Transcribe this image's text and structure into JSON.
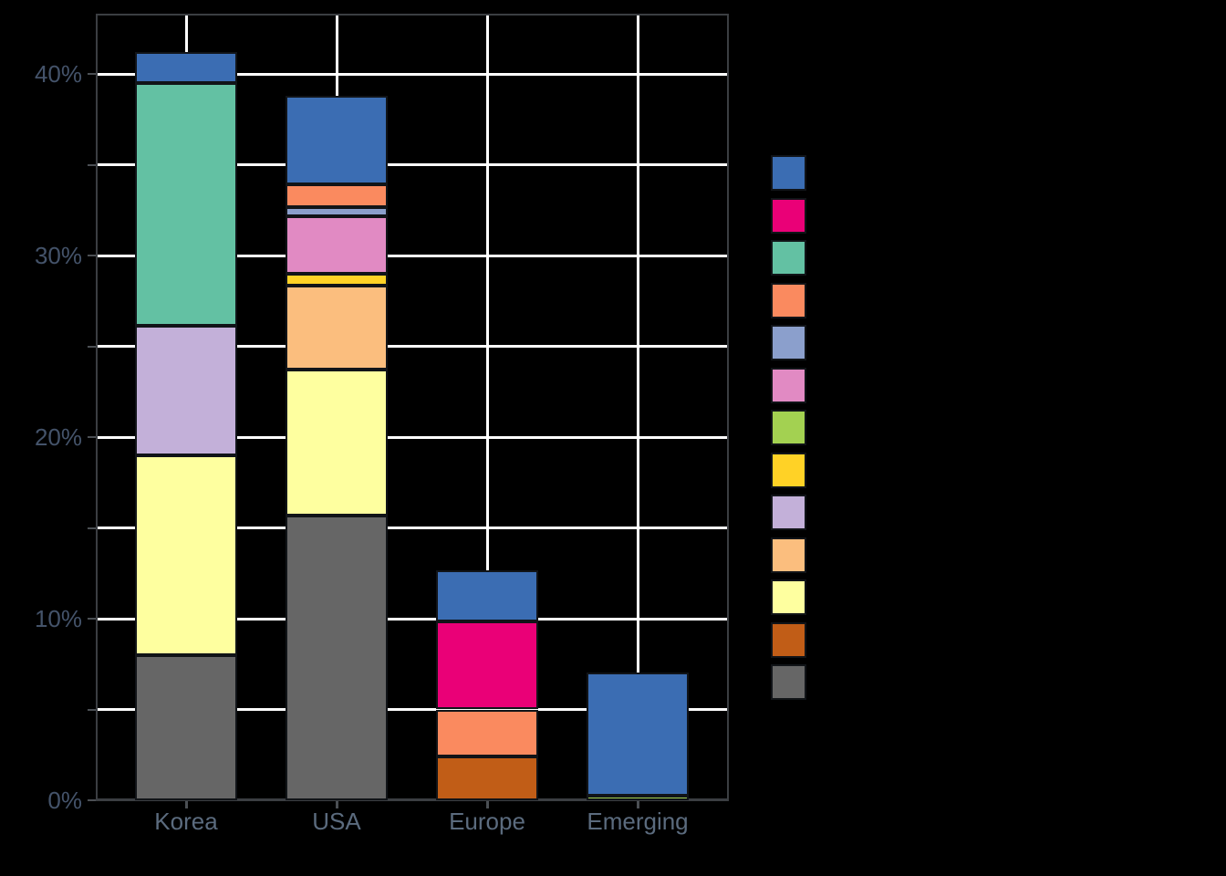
{
  "chart_data": {
    "type": "bar",
    "stacked": true,
    "title": "",
    "xlabel": "",
    "ylabel": "",
    "unit": "%",
    "categories": [
      "Korea",
      "USA",
      "Europe",
      "Emerging"
    ],
    "series": [
      {
        "name": "blue",
        "color": "#3B6DB3",
        "values": [
          1.7,
          4.9,
          2.8,
          6.8
        ]
      },
      {
        "name": "magenta",
        "color": "#EA0077",
        "values": [
          0,
          0,
          4.85,
          0
        ]
      },
      {
        "name": "teal",
        "color": "#63C1A3",
        "values": [
          13.35,
          0,
          0,
          0
        ]
      },
      {
        "name": "salmon",
        "color": "#FA8A5F",
        "values": [
          0,
          1.25,
          2.6,
          0
        ]
      },
      {
        "name": "periwinkle",
        "color": "#8B9FCC",
        "values": [
          0,
          0.5,
          0,
          0
        ]
      },
      {
        "name": "orchid",
        "color": "#E18AC3",
        "values": [
          0,
          3.15,
          0,
          0
        ]
      },
      {
        "name": "yellow-green",
        "color": "#A3D151",
        "values": [
          0,
          0,
          0,
          0.25
        ]
      },
      {
        "name": "gold",
        "color": "#FFD226",
        "values": [
          0,
          0.65,
          0,
          0
        ]
      },
      {
        "name": "lavender",
        "color": "#C3B0D9",
        "values": [
          7.15,
          0,
          0,
          0
        ]
      },
      {
        "name": "peach",
        "color": "#FBBE7E",
        "values": [
          0,
          4.65,
          0,
          0
        ]
      },
      {
        "name": "light-yellow",
        "color": "#FEFF9F",
        "values": [
          11.0,
          8.0,
          0,
          0
        ]
      },
      {
        "name": "brown",
        "color": "#C15D17",
        "values": [
          0,
          0,
          2.4,
          0
        ]
      },
      {
        "name": "gray",
        "color": "#666666",
        "values": [
          8.0,
          15.7,
          0,
          0
        ]
      }
    ],
    "stack_order_bottom_to_top": [
      "gray",
      "brown",
      "light-yellow",
      "peach",
      "lavender",
      "gold",
      "yellow-green",
      "orchid",
      "periwinkle",
      "salmon",
      "teal",
      "magenta",
      "blue"
    ],
    "totals": [
      41.2,
      38.8,
      12.65,
      7.05
    ],
    "y_axis": {
      "labeled_ticks": [
        {
          "value": 0,
          "label": "0%"
        },
        {
          "value": 10,
          "label": "10%"
        },
        {
          "value": 20,
          "label": "20%"
        },
        {
          "value": 30,
          "label": "30%"
        },
        {
          "value": 40,
          "label": "40%"
        }
      ],
      "minor_tick_step": 5,
      "range": [
        0,
        43.3
      ],
      "grid": true
    },
    "x_axis": {
      "tick_labels": [
        "Korea",
        "USA",
        "Europe",
        "Emerging"
      ],
      "grid": true
    },
    "legend": {
      "position": "right",
      "labels_visible": false,
      "swatch_colors": [
        "#3B6DB3",
        "#EA0077",
        "#63C1A3",
        "#FA8A5F",
        "#8B9FCC",
        "#E18AC3",
        "#A3D151",
        "#FFD226",
        "#C3B0D9",
        "#FBBE7E",
        "#FEFF9F",
        "#C15D17",
        "#666666"
      ]
    }
  },
  "style": {
    "background": "#000000",
    "gridline_color": "#FFFFFF",
    "axis_line_color": "#3B3E42",
    "tick_mark_color": "#4B4F54",
    "y_tick_label_color": "#44536A",
    "x_tick_label_color": "#5B6B7E",
    "segment_outline_color": "#111418"
  }
}
